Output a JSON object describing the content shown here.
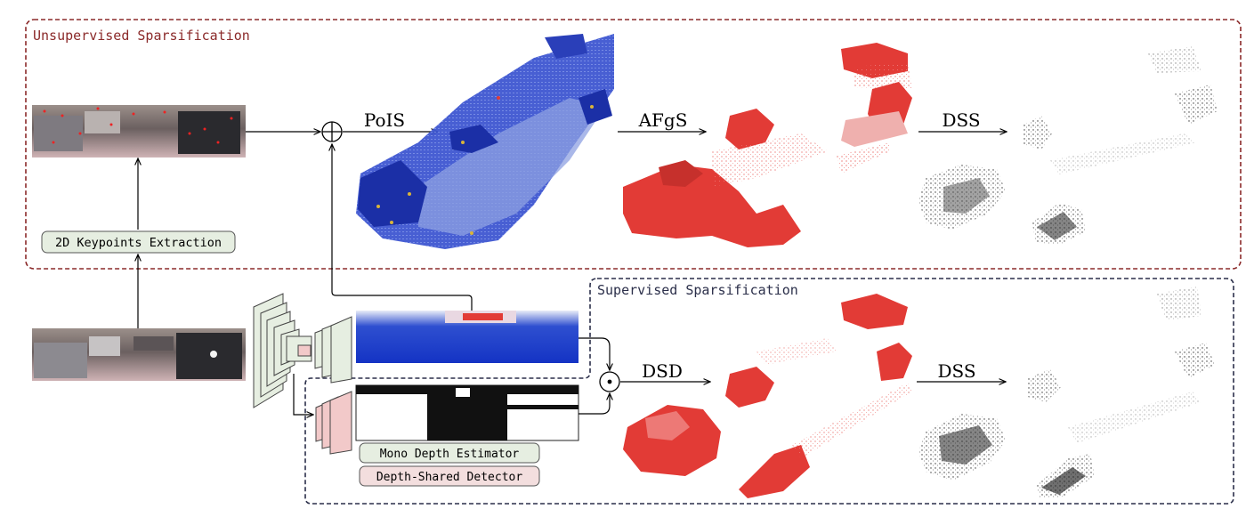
{
  "sections": {
    "unsupervised_title": "Unsupervised Sparsification",
    "supervised_title": "Supervised Sparsification"
  },
  "modules": {
    "keypoints": "2D Keypoints Extraction",
    "mono_depth": "Mono Depth Estimator",
    "depth_shared": "Depth-Shared Detector"
  },
  "arrows": {
    "pois": "PoIS",
    "afgs": "AFgS",
    "dss_top": "DSS",
    "dsd": "DSD",
    "dss_bottom": "DSS"
  },
  "colors": {
    "unsupervised_border": "#8b2a2a",
    "supervised_border": "#2b2f4a",
    "keypoints_fill": "#e6eee1",
    "mono_fill": "#e6eee1",
    "depth_shared_fill": "#f3dede",
    "blue_cloud": "#2f44c8",
    "red_cloud": "#e23b36",
    "gray_cloud": "#444444"
  }
}
